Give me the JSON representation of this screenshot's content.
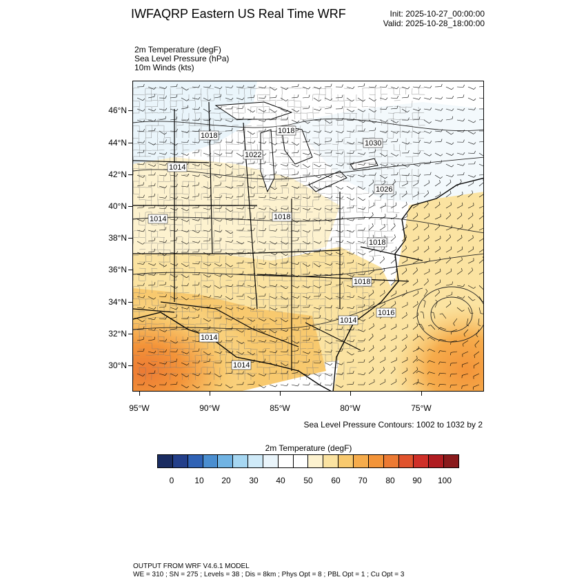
{
  "header": {
    "title": "IWFAQRP Eastern US Real Time WRF",
    "init": "Init: 2025-10-27_00:00:00",
    "valid": "Valid: 2025-10-28_18:00:00"
  },
  "fields": [
    "2m Temperature   (degF)",
    "Sea Level Pressure   (hPa)",
    "10m Winds   (kts)"
  ],
  "map": {
    "lat_labels": [
      "46°N",
      "44°N",
      "42°N",
      "40°N",
      "38°N",
      "36°N",
      "34°N",
      "32°N",
      "30°N"
    ],
    "lon_labels": [
      "95°W",
      "90°W",
      "85°W",
      "80°W",
      "75°W"
    ],
    "pressure_labels": [
      "1018",
      "1018",
      "1014",
      "1022",
      "1030",
      "1014",
      "1018",
      "1026",
      "1014",
      "1018",
      "1018",
      "1014",
      "1016",
      "1014"
    ],
    "slp_note": "Sea Level Pressure Contours: 1002 to 1032 by 2"
  },
  "colorbar": {
    "title": "2m Temperature  (degF)",
    "labels": [
      "0",
      "10",
      "20",
      "30",
      "40",
      "50",
      "60",
      "70",
      "80",
      "90",
      "100"
    ],
    "colors": [
      "#1a2c61",
      "#233f8a",
      "#2f62b5",
      "#4a8ed0",
      "#70b3e3",
      "#a6d7f2",
      "#cfeaf8",
      "#eaf5fb",
      "#ffffff",
      "#ffffff",
      "#fdf2cf",
      "#fbe3a1",
      "#f8c96e",
      "#f6ac4c",
      "#f39439",
      "#ec7a33",
      "#e1532d",
      "#cf2f28",
      "#b01c21",
      "#8a1a1c"
    ]
  },
  "footer": {
    "line1": "OUTPUT FROM WRF V4.6.1 MODEL",
    "line2": "WE = 310 ; SN = 275 ; Levels = 38 ; Dis = 8km ; Phys Opt = 8 ; PBL Opt = 1 ; Cu Opt = 3"
  }
}
